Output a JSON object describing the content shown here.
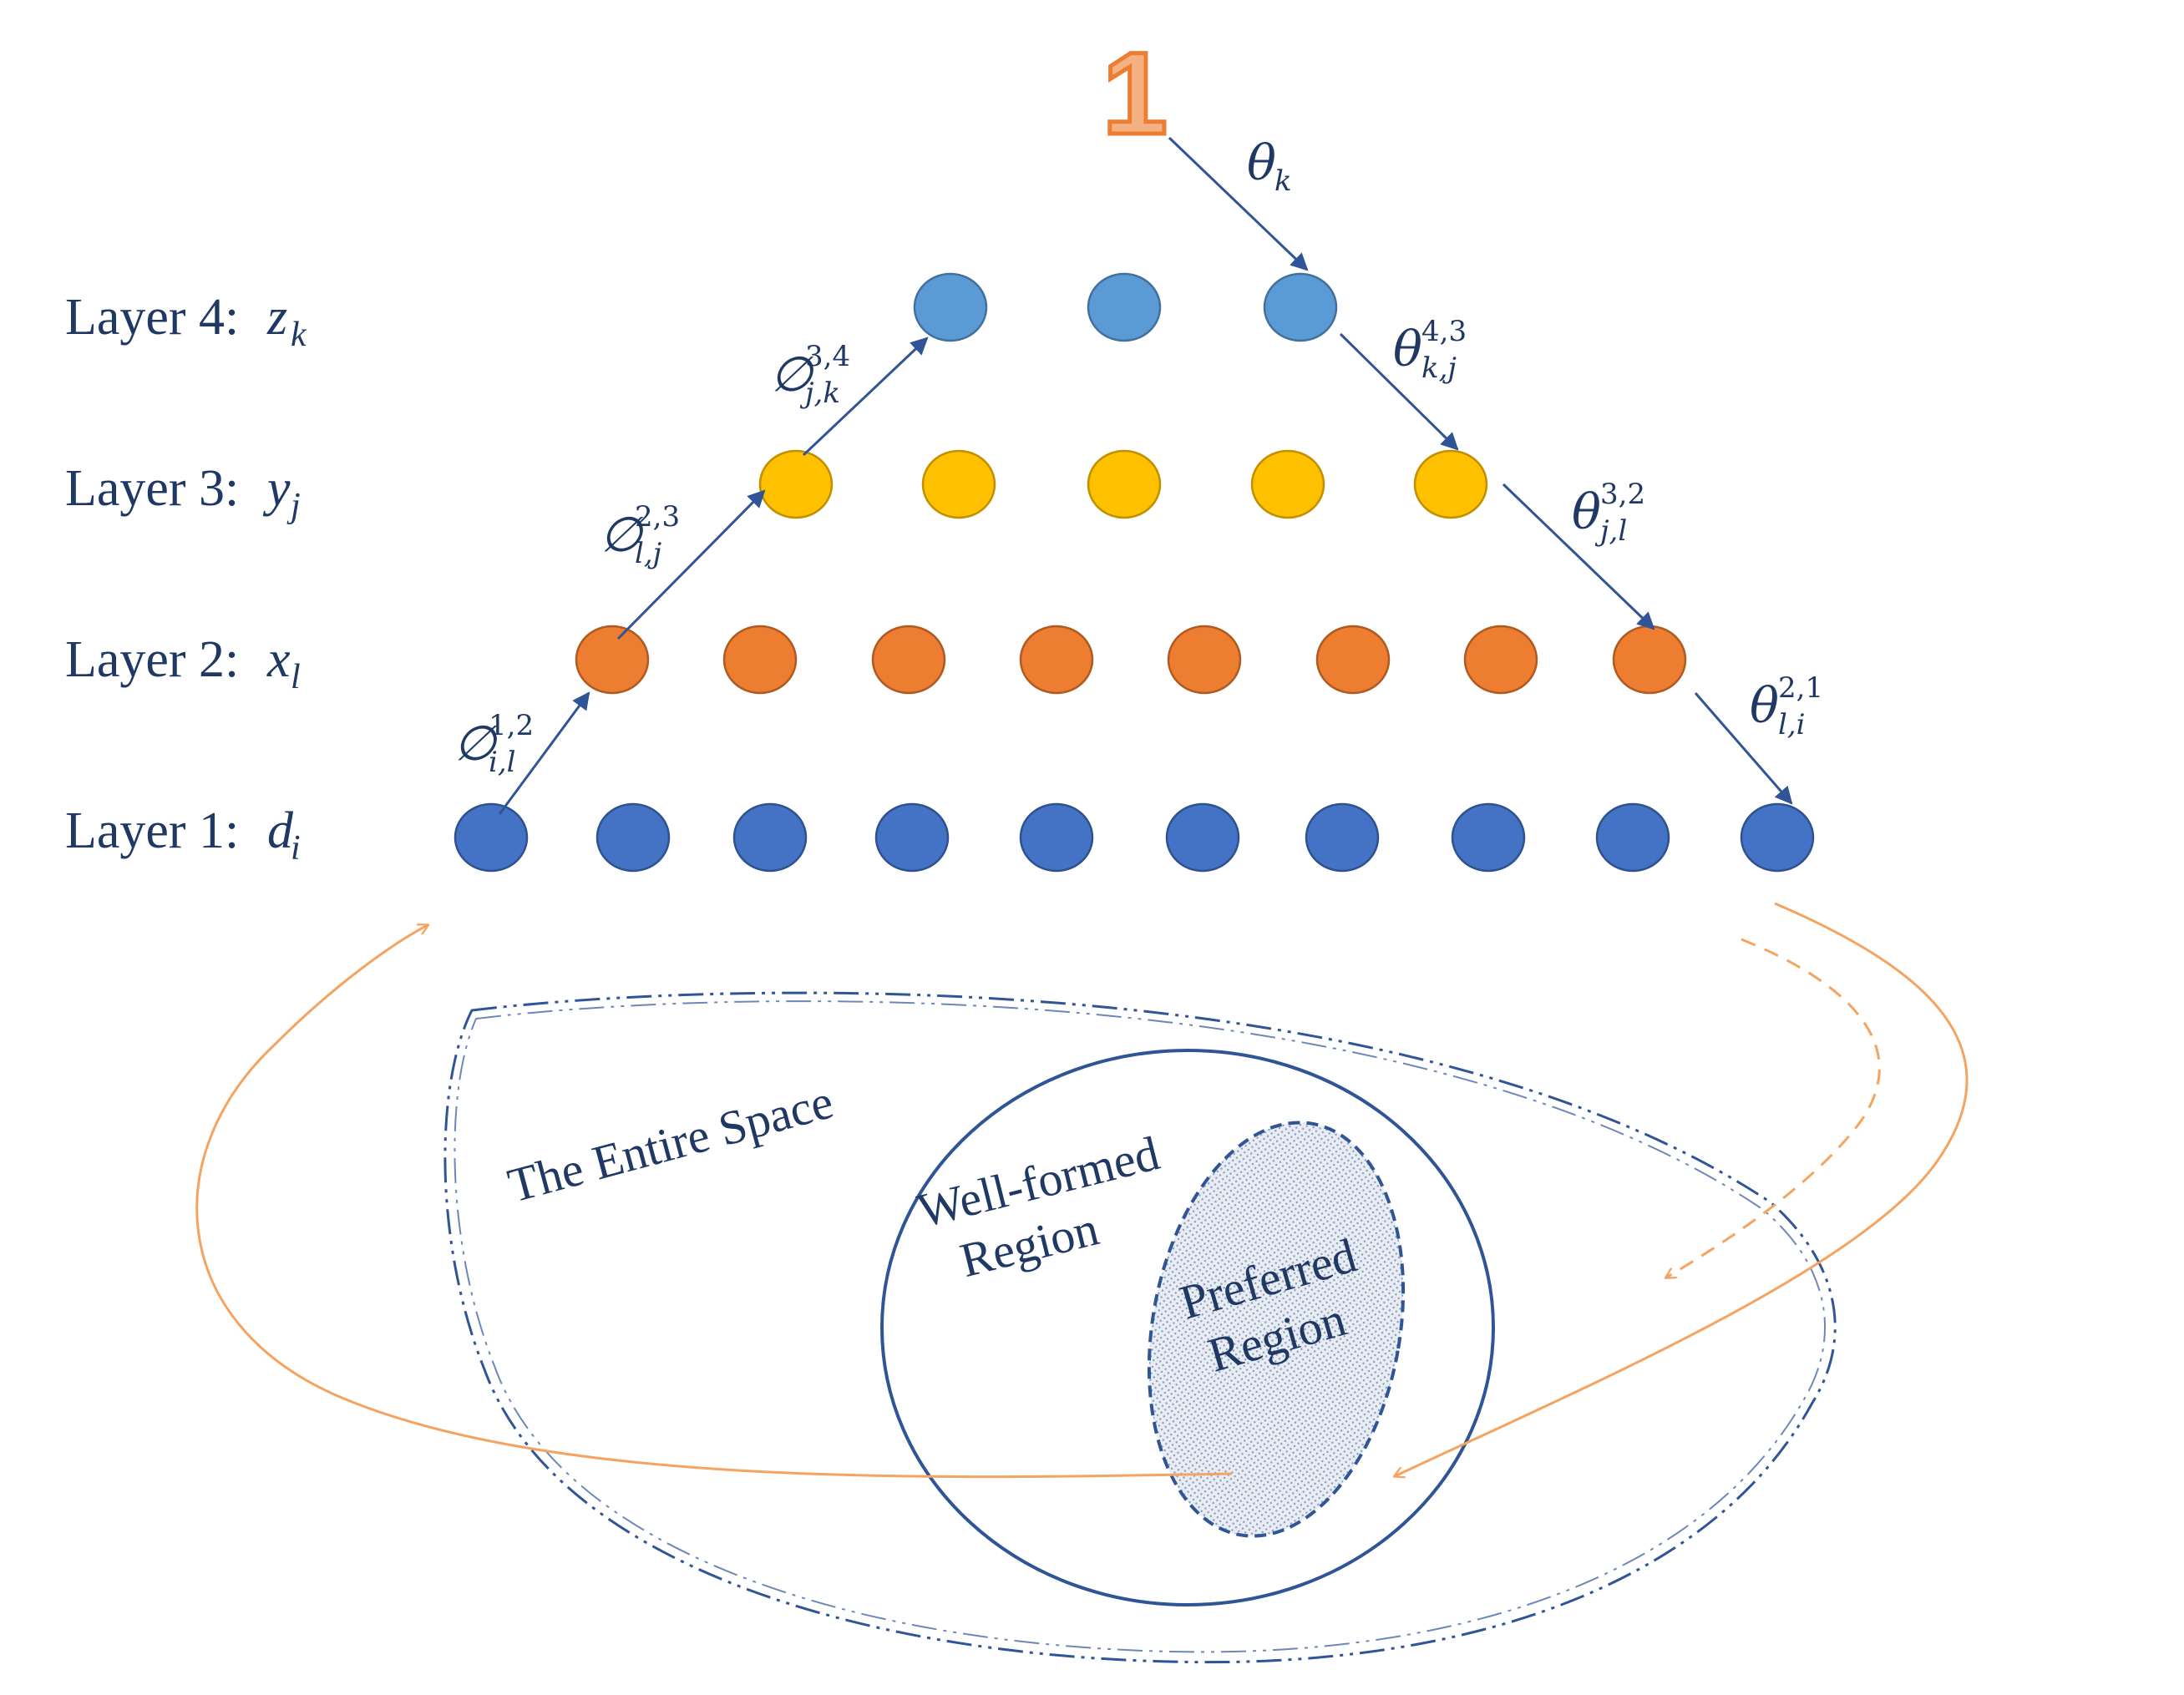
{
  "top_node_label": "1",
  "layers": [
    {
      "label": "Layer 4:",
      "var": "z",
      "sub": "k",
      "count": 3,
      "color": "#5b9bd5"
    },
    {
      "label": "Layer 3:",
      "var": "y",
      "sub": "j",
      "count": 5,
      "color": "#ffc000"
    },
    {
      "label": "Layer 2:",
      "var": "x",
      "sub": "l",
      "count": 8,
      "color": "#ed7d31"
    },
    {
      "label": "Layer 1:",
      "var": "d",
      "sub": "i",
      "count": 10,
      "color": "#4472c4"
    }
  ],
  "up_weights": [
    {
      "sym": "∅",
      "sup": "1,2",
      "sub": "i,l"
    },
    {
      "sym": "∅",
      "sup": "2,3",
      "sub": "l,j"
    },
    {
      "sym": "∅",
      "sup": "3,4",
      "sub": "j,k"
    }
  ],
  "down_weights": [
    {
      "sym": "θ",
      "sup": "",
      "sub": "k"
    },
    {
      "sym": "θ",
      "sup": "4,3",
      "sub": "k,j"
    },
    {
      "sym": "θ",
      "sup": "3,2",
      "sub": "j,l"
    },
    {
      "sym": "θ",
      "sup": "2,1",
      "sub": "l,i"
    }
  ],
  "regions": {
    "entire_space": "The Entire Space",
    "well_formed_line1": "Well-formed",
    "well_formed_line2": "Region",
    "preferred_line1": "Preferred",
    "preferred_line2": "Region"
  },
  "colors": {
    "text": "#1f3864",
    "arrow": "#2f5597",
    "feedback_arrow": "#f4a460",
    "top_node": "#ed7d31"
  }
}
